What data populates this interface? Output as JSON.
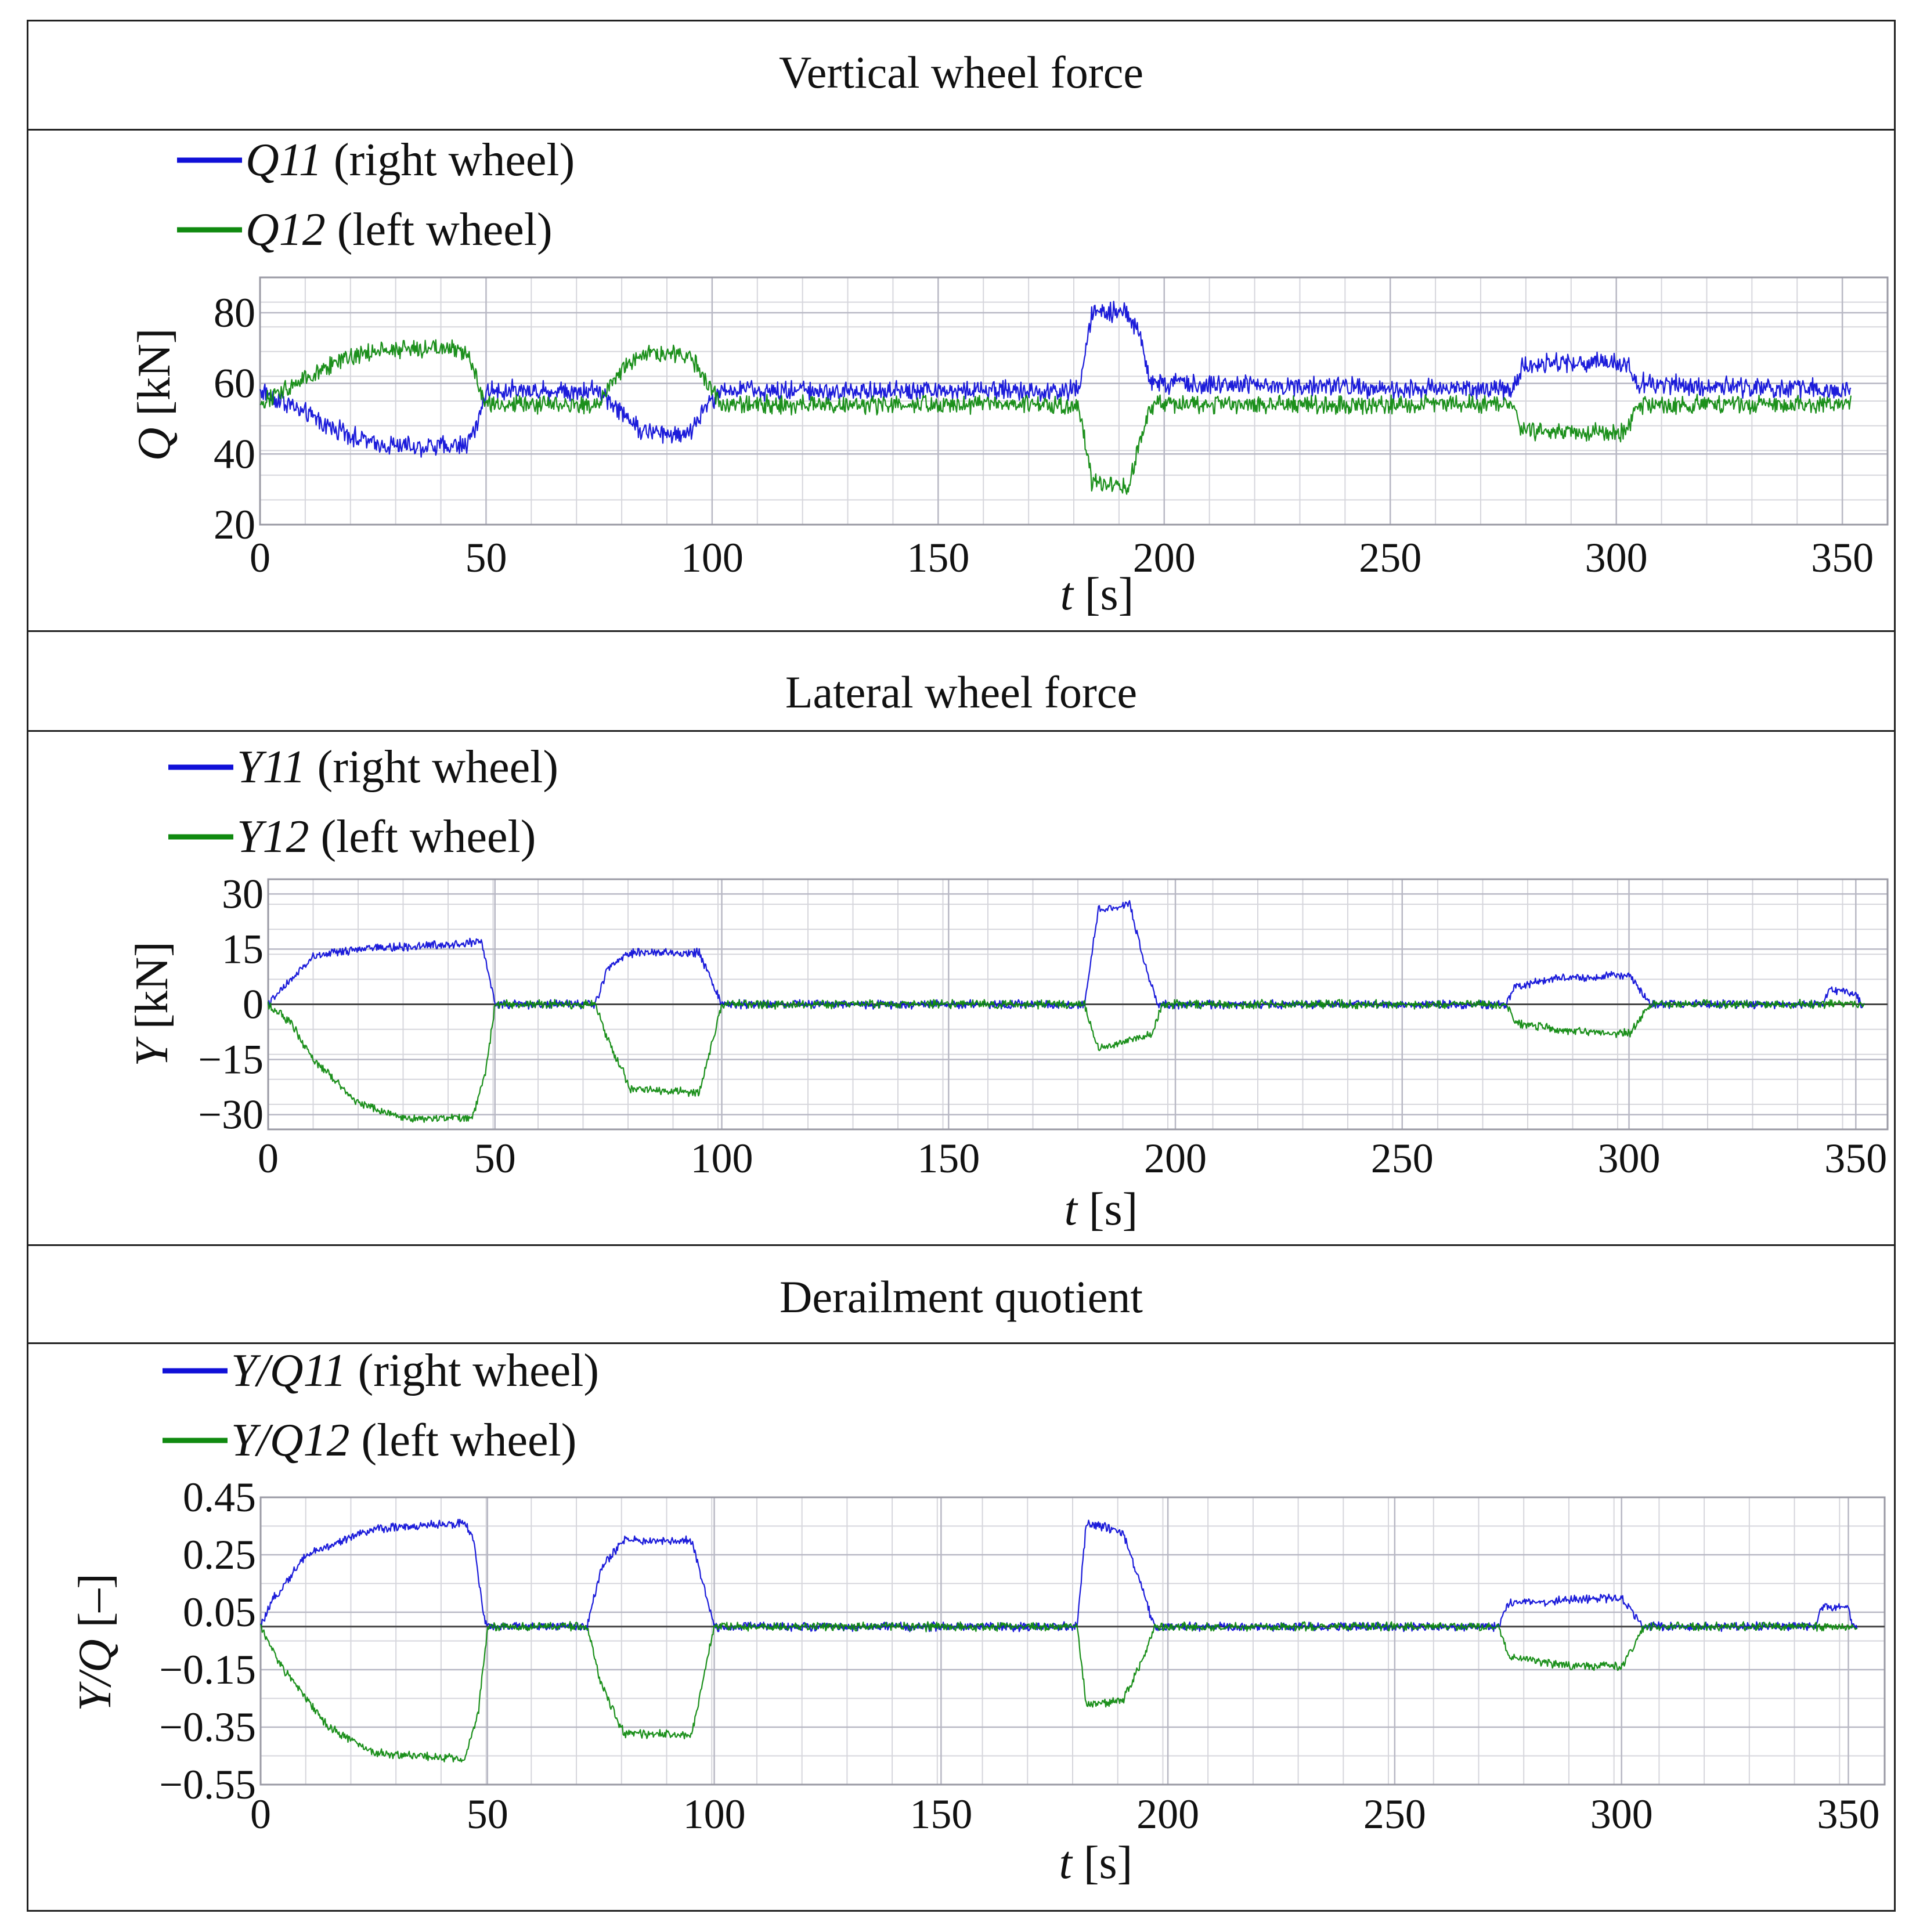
{
  "colors": {
    "right": "#1010d8",
    "left": "#108a10",
    "grid": "#d6d6dc",
    "frame": "#222222"
  },
  "chart_data": [
    {
      "type": "line",
      "title": "Vertical wheel force",
      "xlabel_var": "t",
      "xlabel_unit": " [s]",
      "ylabel_var": "Q",
      "ylabel_unit": " [kN]",
      "xlim": [
        0,
        360
      ],
      "ylim": [
        20,
        90
      ],
      "xticks": [
        0,
        50,
        100,
        150,
        200,
        250,
        300,
        350
      ],
      "yticks": [
        20,
        40,
        60,
        80
      ],
      "zero_line": false,
      "series": [
        {
          "var": "Q11",
          "label": " (right wheel)",
          "color": "#1010d8",
          "noise": 2.2,
          "points": [
            [
              0,
              58
            ],
            [
              5,
              55
            ],
            [
              15,
              48
            ],
            [
              25,
              43
            ],
            [
              35,
              42
            ],
            [
              46,
              43
            ],
            [
              48,
              48
            ],
            [
              50,
              58
            ],
            [
              75,
              58
            ],
            [
              80,
              52
            ],
            [
              85,
              46
            ],
            [
              95,
              46
            ],
            [
              98,
              52
            ],
            [
              102,
              58
            ],
            [
              181,
              58
            ],
            [
              184,
              80
            ],
            [
              192,
              80
            ],
            [
              195,
              72
            ],
            [
              197,
              60
            ],
            [
              277,
              58
            ],
            [
              279,
              64
            ],
            [
              285,
              66
            ],
            [
              302,
              66
            ],
            [
              305,
              60
            ],
            [
              352,
              58
            ]
          ]
        },
        {
          "var": "Q12",
          "label": " (left wheel)",
          "color": "#108a10",
          "noise": 2.0,
          "points": [
            [
              0,
              54
            ],
            [
              5,
              58
            ],
            [
              15,
              65
            ],
            [
              25,
              69
            ],
            [
              35,
              70
            ],
            [
              46,
              69
            ],
            [
              48,
              62
            ],
            [
              50,
              54
            ],
            [
              75,
              54
            ],
            [
              80,
              64
            ],
            [
              85,
              68
            ],
            [
              95,
              68
            ],
            [
              98,
              62
            ],
            [
              102,
              54
            ],
            [
              181,
              54
            ],
            [
              184,
              32
            ],
            [
              192,
              31
            ],
            [
              195,
              45
            ],
            [
              197,
              54
            ],
            [
              277,
              54
            ],
            [
              279,
              47
            ],
            [
              285,
              46
            ],
            [
              302,
              46
            ],
            [
              305,
              54
            ],
            [
              352,
              54
            ]
          ]
        }
      ]
    },
    {
      "type": "line",
      "title": "Lateral wheel force",
      "xlabel_var": "t",
      "xlabel_unit": " [s]",
      "ylabel_var": "Y",
      "ylabel_unit": " [kN]",
      "xlim": [
        0,
        357
      ],
      "ylim": [
        -34,
        34
      ],
      "xticks": [
        0,
        50,
        100,
        150,
        200,
        250,
        300,
        350
      ],
      "yticks": [
        -30,
        -15,
        0,
        15,
        30
      ],
      "zero_line": true,
      "series": [
        {
          "var": "Y11",
          "label": " (right wheel)",
          "color": "#1010d8",
          "noise": 0.9,
          "points": [
            [
              0,
              0
            ],
            [
              3,
              4
            ],
            [
              10,
              13
            ],
            [
              20,
              15
            ],
            [
              35,
              16
            ],
            [
              47,
              17
            ],
            [
              49,
              6
            ],
            [
              50,
              0
            ],
            [
              72,
              0
            ],
            [
              75,
              10
            ],
            [
              80,
              14
            ],
            [
              95,
              14
            ],
            [
              98,
              6
            ],
            [
              100,
              0
            ],
            [
              180,
              0
            ],
            [
              183,
              26
            ],
            [
              190,
              27
            ],
            [
              193,
              12
            ],
            [
              196,
              0
            ],
            [
              273,
              0
            ],
            [
              275,
              5
            ],
            [
              285,
              7
            ],
            [
              300,
              8
            ],
            [
              303,
              3
            ],
            [
              305,
              0
            ],
            [
              343,
              0
            ],
            [
              344,
              4
            ],
            [
              350,
              3
            ],
            [
              351,
              0
            ],
            [
              352,
              0
            ]
          ]
        },
        {
          "var": "Y12",
          "label": " (left wheel)",
          "color": "#108a10",
          "noise": 0.9,
          "points": [
            [
              0,
              0
            ],
            [
              5,
              -5
            ],
            [
              10,
              -15
            ],
            [
              20,
              -27
            ],
            [
              30,
              -31
            ],
            [
              45,
              -31
            ],
            [
              48,
              -18
            ],
            [
              50,
              0
            ],
            [
              72,
              0
            ],
            [
              75,
              -10
            ],
            [
              80,
              -23
            ],
            [
              95,
              -24
            ],
            [
              98,
              -10
            ],
            [
              100,
              0
            ],
            [
              180,
              0
            ],
            [
              183,
              -12
            ],
            [
              195,
              -8
            ],
            [
              197,
              0
            ],
            [
              273,
              0
            ],
            [
              275,
              -5
            ],
            [
              285,
              -7
            ],
            [
              300,
              -8
            ],
            [
              303,
              -3
            ],
            [
              305,
              0
            ],
            [
              352,
              0
            ]
          ]
        }
      ]
    },
    {
      "type": "line",
      "title": "Derailment quotient",
      "xlabel_var": "t",
      "xlabel_unit": " [s]",
      "ylabel_var": "Y/Q",
      "ylabel_unit": " [–]",
      "xlim": [
        0,
        358
      ],
      "ylim": [
        -0.55,
        0.45
      ],
      "xticks": [
        0,
        50,
        100,
        150,
        200,
        250,
        300,
        350
      ],
      "yticks": [
        -0.55,
        -0.35,
        -0.15,
        0.05,
        0.25,
        0.45
      ],
      "zero_line": true,
      "series": [
        {
          "var": "Y/Q11",
          "label": " (right wheel)",
          "color": "#1010d8",
          "noise": 0.012,
          "points": [
            [
              0,
              0
            ],
            [
              3,
              0.1
            ],
            [
              10,
              0.25
            ],
            [
              25,
              0.34
            ],
            [
              45,
              0.36
            ],
            [
              47,
              0.3
            ],
            [
              49,
              0.05
            ],
            [
              50,
              0
            ],
            [
              72,
              0
            ],
            [
              75,
              0.2
            ],
            [
              80,
              0.3
            ],
            [
              95,
              0.3
            ],
            [
              98,
              0.12
            ],
            [
              100,
              0
            ],
            [
              180,
              0
            ],
            [
              182,
              0.36
            ],
            [
              190,
              0.33
            ],
            [
              195,
              0.1
            ],
            [
              197,
              0
            ],
            [
              273,
              0
            ],
            [
              275,
              0.08
            ],
            [
              285,
              0.09
            ],
            [
              300,
              0.1
            ],
            [
              303,
              0.04
            ],
            [
              305,
              0
            ],
            [
              343,
              0
            ],
            [
              344,
              0.07
            ],
            [
              350,
              0.06
            ],
            [
              351,
              0
            ],
            [
              352,
              0
            ]
          ]
        },
        {
          "var": "Y/Q12",
          "label": " (left wheel)",
          "color": "#108a10",
          "noise": 0.012,
          "points": [
            [
              0,
              0
            ],
            [
              5,
              -0.15
            ],
            [
              15,
              -0.35
            ],
            [
              25,
              -0.44
            ],
            [
              45,
              -0.46
            ],
            [
              48,
              -0.3
            ],
            [
              50,
              0
            ],
            [
              72,
              0
            ],
            [
              75,
              -0.2
            ],
            [
              80,
              -0.37
            ],
            [
              95,
              -0.38
            ],
            [
              98,
              -0.15
            ],
            [
              100,
              0
            ],
            [
              180,
              0
            ],
            [
              182,
              -0.27
            ],
            [
              190,
              -0.26
            ],
            [
              195,
              -0.1
            ],
            [
              197,
              0
            ],
            [
              273,
              0
            ],
            [
              275,
              -0.1
            ],
            [
              285,
              -0.13
            ],
            [
              300,
              -0.14
            ],
            [
              303,
              -0.06
            ],
            [
              305,
              0
            ],
            [
              352,
              0
            ]
          ]
        }
      ]
    }
  ]
}
